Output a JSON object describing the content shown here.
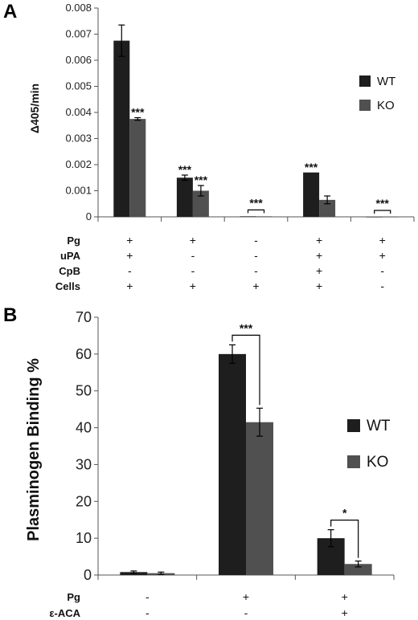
{
  "panels": [
    "A",
    "B"
  ],
  "chart_data": [
    {
      "type": "bar",
      "panel": "A",
      "ylabel": "Δ405/min",
      "ylim": [
        0,
        0.008
      ],
      "yticks": [
        "0",
        "0.001",
        "0.002",
        "0.003",
        "0.004",
        "0.005",
        "0.006",
        "0.007",
        "0.008"
      ],
      "groups": 5,
      "series": [
        {
          "name": "WT",
          "color": "#1e1e1e",
          "values": [
            0.00675,
            0.0015,
            2e-05,
            0.0017,
            0.0
          ],
          "errors": [
            0.0006,
            0.0001,
            0.0,
            0.0,
            0.0
          ]
        },
        {
          "name": "KO",
          "color": "#505050",
          "values": [
            0.00375,
            0.001,
            2e-05,
            0.00065,
            0.0
          ],
          "errors": [
            5e-05,
            0.0002,
            0.0,
            0.00015,
            0.0
          ]
        }
      ],
      "significance": [
        {
          "group": 0,
          "series": 1,
          "text": "***"
        },
        {
          "group": 1,
          "series": 0,
          "text": "***"
        },
        {
          "group": 1,
          "series": 1,
          "text": "***"
        },
        {
          "group": 2,
          "bracket": true,
          "text": "***"
        },
        {
          "group": 3,
          "series": 0,
          "text": "***"
        },
        {
          "group": 4,
          "bracket": true,
          "text": "***"
        }
      ],
      "conditions": [
        {
          "label": "Pg",
          "values": [
            "+",
            "+",
            "-",
            "+",
            "+"
          ]
        },
        {
          "label": "uPA",
          "values": [
            "+",
            "-",
            "-",
            "+",
            "+"
          ]
        },
        {
          "label": "CpB",
          "values": [
            "-",
            "-",
            "-",
            "+",
            "-"
          ]
        },
        {
          "label": "Cells",
          "values": [
            "+",
            "+",
            "+",
            "+",
            "-"
          ]
        }
      ],
      "legend": "right"
    },
    {
      "type": "bar",
      "panel": "B",
      "ylabel": "Plasminogen Binding %",
      "ylim": [
        0,
        70
      ],
      "yticks": [
        "0",
        "10",
        "20",
        "30",
        "40",
        "50",
        "60",
        "70"
      ],
      "groups": 3,
      "series": [
        {
          "name": "WT",
          "color": "#1e1e1e",
          "values": [
            0.8,
            60,
            10
          ],
          "errors": [
            0.3,
            2.5,
            2.3
          ]
        },
        {
          "name": "KO",
          "color": "#505050",
          "values": [
            0.5,
            41.5,
            3.0
          ],
          "errors": [
            0.3,
            3.8,
            0.8
          ]
        }
      ],
      "significance": [
        {
          "group": 1,
          "bracket": true,
          "text": "***"
        },
        {
          "group": 2,
          "bracket": true,
          "text": "*"
        }
      ],
      "conditions": [
        {
          "label": "Pg",
          "values": [
            "-",
            "+",
            "+"
          ]
        },
        {
          "label": "ε-ACA",
          "values": [
            "-",
            "-",
            "+"
          ]
        }
      ],
      "legend": "right"
    }
  ]
}
